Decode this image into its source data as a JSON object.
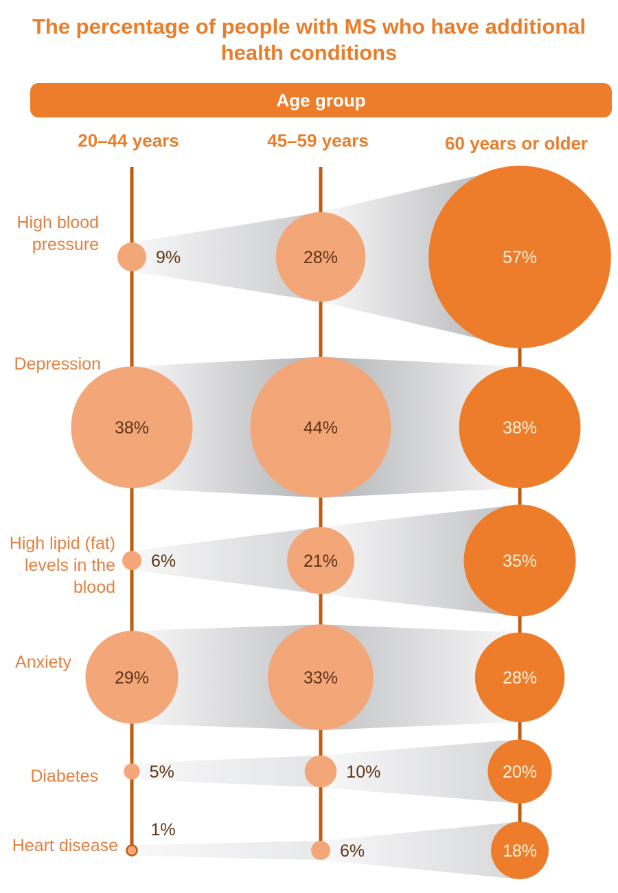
{
  "title": "The percentage of people with MS who have additional health conditions",
  "age_group_header": "Age group",
  "colors": {
    "title_orange": "#E87E2B",
    "label_orange": "#E38042",
    "bar_orange": "#ED7D2B",
    "bubble_light": "#F3A678",
    "bubble_dark": "#ED7D2B",
    "axis_line": "#C05C12",
    "value_text_dark": "#5E3318",
    "value_text_light": "#FBF2DC",
    "wedge_light": "#F8F8F9",
    "wedge_dark": "#B1B3B5"
  },
  "chart_data": {
    "type": "bubble",
    "title": "The percentage of people with MS who have additional health conditions",
    "columns": [
      "20–44 years",
      "45–59 years",
      "60 years or older"
    ],
    "rows": [
      {
        "condition": "High blood pressure",
        "label": "High blood\npressure",
        "values": [
          9,
          28,
          57
        ],
        "labels": [
          "9%",
          "28%",
          "57%"
        ]
      },
      {
        "condition": "Depression",
        "label": "Depression",
        "values": [
          38,
          44,
          38
        ],
        "labels": [
          "38%",
          "44%",
          "38%"
        ]
      },
      {
        "condition": "High lipid (fat) levels in the blood",
        "label": "High lipid (fat)\nlevels in the\nblood",
        "values": [
          6,
          21,
          35
        ],
        "labels": [
          "6%",
          "21%",
          "35%"
        ]
      },
      {
        "condition": "Anxiety",
        "label": "Anxiety",
        "values": [
          29,
          33,
          28
        ],
        "labels": [
          "29%",
          "33%",
          "28%"
        ]
      },
      {
        "condition": "Diabetes",
        "label": "Diabetes",
        "values": [
          5,
          10,
          20
        ],
        "labels": [
          "5%",
          "10%",
          "20%"
        ]
      },
      {
        "condition": "Heart disease",
        "label": "Heart disease",
        "values": [
          1,
          6,
          18
        ],
        "labels": [
          "1%",
          "6%",
          "18%"
        ]
      }
    ],
    "value_unit": "%",
    "layout_hint": "bubble area grid: rows = conditions, columns = age groups; bubble radius proportional to value; grey tapered wedges connect bubbles across columns"
  }
}
